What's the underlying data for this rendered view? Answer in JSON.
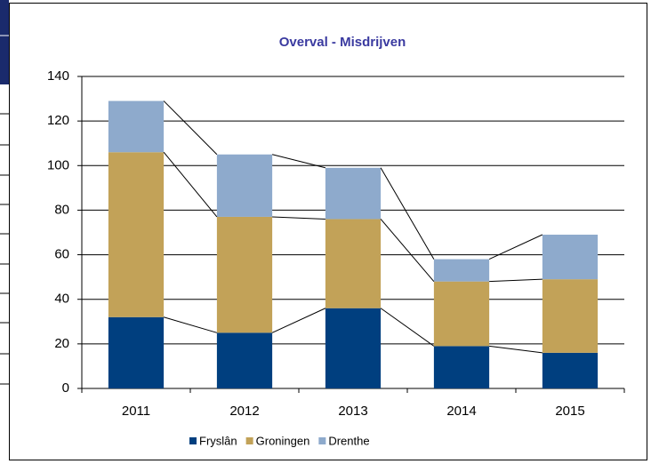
{
  "chart_data": {
    "type": "stacked_bar",
    "title": "Overval - Misdrijven",
    "categories": [
      "2011",
      "2012",
      "2013",
      "2014",
      "2015"
    ],
    "series": [
      {
        "name": "Fryslân",
        "color": "#003f7f",
        "values": [
          32,
          25,
          36,
          19,
          16
        ]
      },
      {
        "name": "Groningen",
        "color": "#c2a258",
        "values": [
          74,
          52,
          40,
          29,
          33
        ]
      },
      {
        "name": "Drenthe",
        "color": "#8eaacc",
        "values": [
          23,
          28,
          23,
          10,
          20
        ]
      }
    ],
    "ylim": [
      0,
      140
    ],
    "yticks": [
      0,
      20,
      40,
      60,
      80,
      100,
      120,
      140
    ],
    "grid": true,
    "legend": "bottom"
  }
}
